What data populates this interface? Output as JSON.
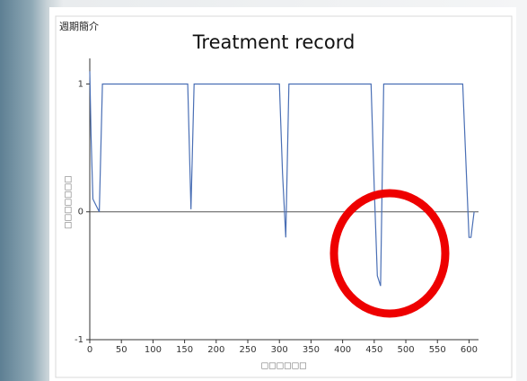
{
  "chart_data": {
    "type": "line",
    "label": "週期簡介",
    "title": "Treatment record",
    "x_label": "□□□□□□",
    "y_label": "□□□□□□□",
    "x": [
      0,
      2,
      5,
      10,
      15,
      20,
      155,
      160,
      165,
      300,
      305,
      310,
      315,
      445,
      450,
      455,
      460,
      465,
      590,
      595,
      600,
      603,
      608
    ],
    "values": [
      1.1,
      0.6,
      0.1,
      0.05,
      0,
      1,
      1,
      0.02,
      1,
      1,
      0.3,
      -0.2,
      1,
      1,
      0.2,
      -0.5,
      -0.58,
      1,
      1,
      0.4,
      -0.2,
      -0.2,
      0
    ],
    "color": "#4a6fb5",
    "xlim": [
      0,
      615
    ],
    "ylim": [
      -1,
      1.2
    ],
    "xticks": [
      0,
      50,
      100,
      150,
      200,
      250,
      300,
      350,
      400,
      450,
      500,
      550,
      600
    ],
    "yticks": [
      -1,
      0,
      1
    ]
  }
}
